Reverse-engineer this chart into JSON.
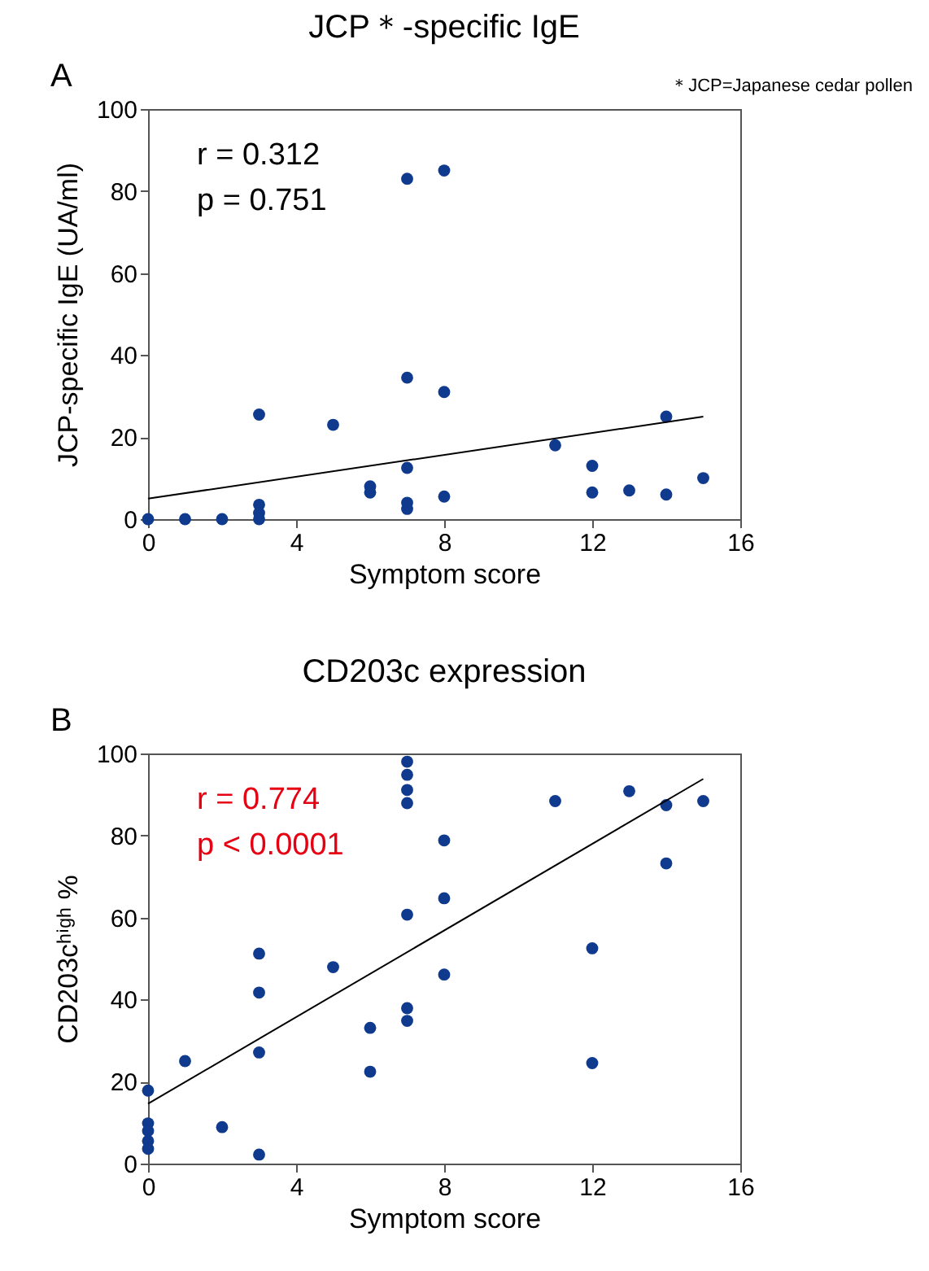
{
  "chart_data": [
    {
      "type": "scatter",
      "title": "JCP＊-specific IgE",
      "xlabel": "Symptom score",
      "ylabel": "JCP-specific IgE (UA/ml)",
      "annotations": [
        "A",
        "r = 0.312",
        "p = 0.751",
        "＊JCP=Japanese cedar pollen"
      ],
      "xlim": [
        0,
        16
      ],
      "xticks": [
        0,
        4,
        8,
        12,
        16
      ],
      "ylim": [
        0,
        100
      ],
      "yticks": [
        0,
        20,
        40,
        60,
        80,
        100
      ],
      "series": [
        {
          "type": "scatter",
          "marker": "circle",
          "color": "#0f3a8e",
          "x": [
            0,
            1,
            2,
            3,
            3,
            3,
            3,
            5,
            6,
            6,
            7,
            7,
            7,
            7,
            7,
            8,
            8,
            8,
            11,
            12,
            12,
            13,
            14,
            14,
            15
          ],
          "values": [
            0,
            0,
            0,
            25.5,
            3.5,
            1.5,
            0,
            23,
            8,
            6.5,
            83,
            34.5,
            12.5,
            4,
            2.5,
            85,
            31,
            5.5,
            18,
            13,
            6.5,
            7,
            25,
            6,
            10
          ]
        },
        {
          "type": "line",
          "color": "#000000",
          "x": [
            0,
            15
          ],
          "values": [
            5,
            25
          ]
        }
      ]
    },
    {
      "type": "scatter",
      "title": "CD203c expression",
      "xlabel": "Symptom score",
      "ylabel": "CD203cʰⁱᵍʰ %",
      "annotations": [
        "B",
        "r = 0.774",
        "p < 0.0001"
      ],
      "xlim": [
        0,
        16
      ],
      "xticks": [
        0,
        4,
        8,
        12,
        16
      ],
      "ylim": [
        0,
        100
      ],
      "yticks": [
        0,
        20,
        40,
        60,
        80,
        100
      ],
      "series": [
        {
          "type": "scatter",
          "marker": "circle",
          "color": "#0f3a8e",
          "x": [
            0,
            0,
            0,
            0,
            0,
            1,
            2,
            3,
            3,
            3,
            3,
            5,
            6,
            6,
            7,
            7,
            7,
            7,
            7,
            7,
            7,
            8,
            8,
            8,
            11,
            12,
            12,
            13,
            14,
            14,
            15
          ],
          "values": [
            17.8,
            9.8,
            8,
            5.5,
            3.6,
            25,
            8.9,
            51.2,
            41.7,
            27.1,
            2.2,
            47.9,
            33.1,
            22.4,
            98,
            94.8,
            91.1,
            87.9,
            60.7,
            37.9,
            34.8,
            78.8,
            64.7,
            46.1,
            88.4,
            52.5,
            24.5,
            90.8,
            87.4,
            73.2,
            88.4
          ]
        },
        {
          "type": "line",
          "color": "#000000",
          "x": [
            0,
            15
          ],
          "values": [
            14.6,
            93.8
          ]
        }
      ]
    }
  ]
}
